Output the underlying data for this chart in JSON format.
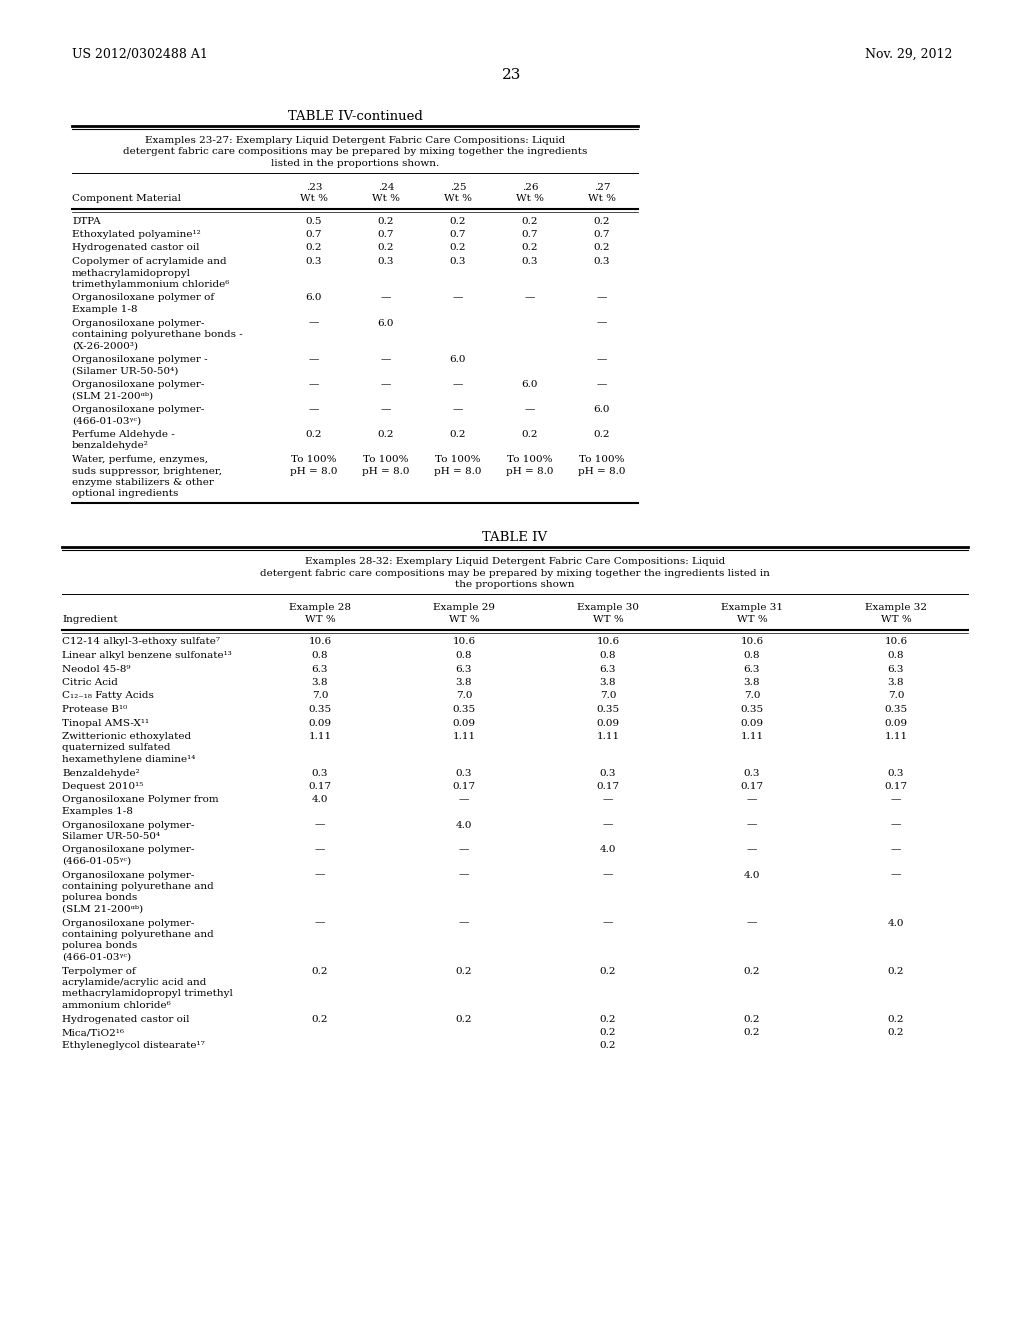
{
  "page_header_left": "US 2012/0302488 A1",
  "page_header_right": "Nov. 29, 2012",
  "page_number": "23",
  "table1_title": "TABLE IV-continued",
  "table1_caption_lines": [
    "Examples 23-27: Exemplary Liquid Detergent Fabric Care Compositions: Liquid",
    "detergent fabric care compositions may be prepared by mixing together the ingredients",
    "listed in the proportions shown."
  ],
  "table1_col_header_nums": [
    ".23",
    ".24",
    ".25",
    ".26",
    ".27"
  ],
  "table1_col_header_units": [
    "Wt %",
    "Wt %",
    "Wt %",
    "Wt %",
    "Wt %"
  ],
  "table1_row_label_header": "Component Material",
  "table1_rows": [
    [
      "DTPA",
      "0.5",
      "0.2",
      "0.2",
      "0.2",
      "0.2"
    ],
    [
      "Ethoxylated polyamine¹²",
      "0.7",
      "0.7",
      "0.7",
      "0.7",
      "0.7"
    ],
    [
      "Hydrogenated castor oil",
      "0.2",
      "0.2",
      "0.2",
      "0.2",
      "0.2"
    ],
    [
      "Copolymer of acrylamide and\nmethacrylamidopropyl\ntrimethylammonium chloride⁶",
      "0.3",
      "0.3",
      "0.3",
      "0.3",
      "0.3"
    ],
    [
      "Organosiloxane polymer of\nExample 1-8",
      "6.0",
      "—",
      "—",
      "—",
      "—"
    ],
    [
      "Organosiloxane polymer-\ncontaining polyurethane bonds -\n(X-26-2000³)",
      "—",
      "6.0",
      "",
      "",
      "—"
    ],
    [
      "Organosiloxane polymer -\n(Silamer UR-50-50⁴)",
      "—",
      "—",
      "6.0",
      "",
      "—"
    ],
    [
      "Organosiloxane polymer-\n(SLM 21-200ᵅᵇ)",
      "—",
      "—",
      "—",
      "6.0",
      "—"
    ],
    [
      "Organosiloxane polymer-\n(466-01-03ᵞᶜ)",
      "—",
      "—",
      "—",
      "—",
      "6.0"
    ],
    [
      "Perfume Aldehyde -\nbenzaldehyde²",
      "0.2",
      "0.2",
      "0.2",
      "0.2",
      "0.2"
    ],
    [
      "Water, perfume, enzymes,\nsuds suppressor, brightener,\nenzyme stabilizers & other\noptional ingredients",
      "To 100%\npH = 8.0",
      "To 100%\npH = 8.0",
      "To 100%\npH = 8.0",
      "To 100%\npH = 8.0",
      "To 100%\npH = 8.0"
    ]
  ],
  "table2_title": "TABLE IV",
  "table2_caption_lines": [
    "Examples 28-32: Exemplary Liquid Detergent Fabric Care Compositions: Liquid",
    "detergent fabric care compositions may be prepared by mixing together the ingredients listed in",
    "the proportions shown"
  ],
  "table2_col_header_nums": [
    "Example 28",
    "Example 29",
    "Example 30",
    "Example 31",
    "Example 32"
  ],
  "table2_col_header_units": [
    "WT %",
    "WT %",
    "WT %",
    "WT %",
    "WT %"
  ],
  "table2_row_label_header": "Ingredient",
  "table2_rows": [
    [
      "C12-14 alkyl-3-ethoxy sulfate⁷",
      "10.6",
      "10.6",
      "10.6",
      "10.6",
      "10.6"
    ],
    [
      "Linear alkyl benzene sulfonate¹³",
      "0.8",
      "0.8",
      "0.8",
      "0.8",
      "0.8"
    ],
    [
      "Neodol 45-8⁹",
      "6.3",
      "6.3",
      "6.3",
      "6.3",
      "6.3"
    ],
    [
      "Citric Acid",
      "3.8",
      "3.8",
      "3.8",
      "3.8",
      "3.8"
    ],
    [
      "C₁₂₋₁₈ Fatty Acids",
      "7.0",
      "7.0",
      "7.0",
      "7.0",
      "7.0"
    ],
    [
      "Protease B¹⁰",
      "0.35",
      "0.35",
      "0.35",
      "0.35",
      "0.35"
    ],
    [
      "Tinopal AMS-X¹¹",
      "0.09",
      "0.09",
      "0.09",
      "0.09",
      "0.09"
    ],
    [
      "Zwitterionic ethoxylated\nquaternized sulfated\nhexamethylene diamine¹⁴",
      "1.11",
      "1.11",
      "1.11",
      "1.11",
      "1.11"
    ],
    [
      "Benzaldehyde²",
      "0.3",
      "0.3",
      "0.3",
      "0.3",
      "0.3"
    ],
    [
      "Dequest 2010¹⁵",
      "0.17",
      "0.17",
      "0.17",
      "0.17",
      "0.17"
    ],
    [
      "Organosiloxane Polymer from\nExamples 1-8",
      "4.0",
      "—",
      "—",
      "—",
      "—"
    ],
    [
      "Organosiloxane polymer-\nSilamer UR-50-50⁴",
      "—",
      "4.0",
      "—",
      "—",
      "—"
    ],
    [
      "Organosiloxane polymer-\n(466-01-05ᵞᶜ)",
      "—",
      "—",
      "4.0",
      "—",
      "—"
    ],
    [
      "Organosiloxane polymer-\ncontaining polyurethane and\npolurea bonds\n(SLM 21-200ᵅᵇ)",
      "—",
      "—",
      "—",
      "4.0",
      "—"
    ],
    [
      "Organosiloxane polymer-\ncontaining polyurethane and\npolurea bonds\n(466-01-03ᵞᶜ)",
      "—",
      "—",
      "—",
      "—",
      "4.0"
    ],
    [
      "Terpolymer of\nacrylamide/acrylic acid and\nmethacrylamidopropyl trimethyl\nammonium chloride⁶",
      "0.2",
      "0.2",
      "0.2",
      "0.2",
      "0.2"
    ],
    [
      "Hydrogenated castor oil",
      "0.2",
      "0.2",
      "0.2",
      "0.2",
      "0.2"
    ],
    [
      "Mica/TiO2¹⁶",
      "",
      "",
      "0.2",
      "0.2",
      "0.2"
    ],
    [
      "Ethyleneglycol distearate¹⁷",
      "",
      "",
      "0.2",
      "",
      ""
    ]
  ]
}
